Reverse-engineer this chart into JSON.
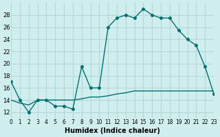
{
  "line1_x": [
    0,
    1,
    2,
    3,
    4,
    5,
    6,
    7,
    8,
    9,
    10,
    11,
    12,
    13,
    14,
    15,
    16,
    17,
    18,
    19,
    20,
    21,
    22,
    23
  ],
  "line1_y": [
    17,
    14,
    12,
    14,
    14,
    13,
    13,
    12.5,
    19.5,
    16,
    16,
    26,
    27.5,
    28,
    27.5,
    29,
    28,
    27.5,
    27.5,
    25.5,
    24,
    23,
    19.5,
    15
  ],
  "line2_x": [
    0,
    1,
    2,
    3,
    4,
    5,
    6,
    7,
    8,
    9,
    10,
    11,
    12,
    13,
    14,
    15,
    16,
    17,
    18,
    19,
    20,
    21,
    22,
    23
  ],
  "line2_y": [
    14,
    13.5,
    13.2,
    14,
    14,
    14,
    14,
    14,
    14.2,
    14.5,
    14.5,
    14.7,
    15,
    15.2,
    15.5,
    15.5,
    15.5,
    15.5,
    15.5,
    15.5,
    15.5,
    15.5,
    15.5,
    15.5
  ],
  "color": "#007070",
  "bg_color": "#d0eeee",
  "grid_color": "#b0d8d8",
  "xlabel": "Humidex (Indice chaleur)",
  "ylim": [
    11,
    30
  ],
  "xlim": [
    0,
    23
  ],
  "yticks": [
    12,
    14,
    16,
    18,
    20,
    22,
    24,
    26,
    28
  ],
  "xticks": [
    0,
    1,
    2,
    3,
    4,
    5,
    6,
    7,
    8,
    9,
    10,
    11,
    12,
    13,
    14,
    15,
    16,
    17,
    18,
    19,
    20,
    21,
    22,
    23
  ],
  "xtick_labels": [
    "0",
    "1",
    "2",
    "3",
    "4",
    "5",
    "6",
    "7",
    "8",
    "9",
    "10",
    "11",
    "12",
    "13",
    "14",
    "15",
    "16",
    "17",
    "18",
    "19",
    "20",
    "21",
    "22",
    "23"
  ]
}
